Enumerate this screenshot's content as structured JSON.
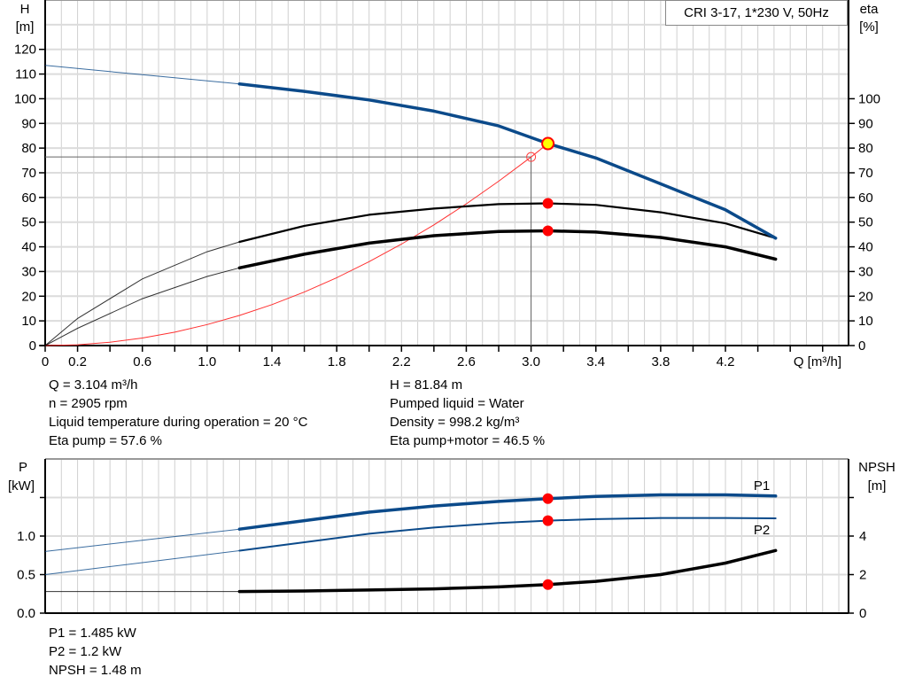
{
  "legend_box": "CRI 3-17, 1*230 V, 50Hz",
  "chart_data": [
    {
      "type": "line",
      "x_label": "Q [m³/h]",
      "y_label_left": [
        "H",
        "[m]"
      ],
      "y_label_right": [
        "eta",
        "[%]"
      ],
      "xlim": [
        0,
        4.96
      ],
      "ylim": [
        0,
        140
      ],
      "x_ticks": [
        0,
        0.2,
        0.4,
        0.6,
        0.8,
        1.0,
        1.2,
        1.4,
        1.6,
        1.8,
        2.0,
        2.2,
        2.4,
        2.6,
        2.8,
        3.0,
        3.2,
        3.4,
        3.6,
        3.8,
        4.0,
        4.2,
        4.4,
        4.6,
        4.8
      ],
      "x_tick_labels": [
        "0",
        "0.2",
        "",
        "0.6",
        "",
        "1.0",
        "",
        "1.4",
        "",
        "1.8",
        "",
        "2.2",
        "",
        "2.6",
        "",
        "3.0",
        "",
        "3.4",
        "",
        "3.8",
        "",
        "4.2",
        "",
        "",
        ""
      ],
      "y_ticks_left": [
        0,
        10,
        20,
        30,
        40,
        50,
        60,
        70,
        80,
        90,
        100,
        110,
        120
      ],
      "y_ticks_right": [
        0,
        10,
        20,
        30,
        40,
        50,
        60,
        70,
        80,
        90,
        100
      ],
      "grid": true,
      "series": [
        {
          "id": "H",
          "color": "#0b4a8a",
          "thick_from": 1.2,
          "x": [
            0,
            0.4,
            0.8,
            1.2,
            1.6,
            2.0,
            2.4,
            2.8,
            3.104,
            3.4,
            3.8,
            4.2,
            4.51
          ],
          "y": [
            113.5,
            111,
            108.5,
            106,
            103,
            99.5,
            95,
            89,
            81.84,
            76,
            65.5,
            55,
            43.5
          ]
        },
        {
          "id": "eta_pump",
          "color": "#000000",
          "thick_from": 1.2,
          "x": [
            0,
            0.2,
            0.6,
            1.0,
            1.2,
            1.6,
            2.0,
            2.4,
            2.8,
            3.104,
            3.4,
            3.8,
            4.2,
            4.51
          ],
          "y": [
            0,
            11,
            27,
            38,
            42,
            48.5,
            53,
            55.5,
            57.3,
            57.6,
            57,
            54,
            49.5,
            43.5
          ]
        },
        {
          "id": "eta_pump_motor",
          "color": "#000000",
          "thick_from": 1.2,
          "x": [
            0,
            0.2,
            0.6,
            1.0,
            1.2,
            1.6,
            2.0,
            2.4,
            2.8,
            3.104,
            3.4,
            3.8,
            4.2,
            4.51
          ],
          "y": [
            0,
            7,
            19,
            28,
            31.5,
            37,
            41.5,
            44.5,
            46.2,
            46.5,
            46,
            43.8,
            40,
            35
          ]
        },
        {
          "id": "system_curve",
          "color": "#ff3030",
          "x": [
            0,
            0.2,
            0.4,
            0.6,
            0.8,
            1.0,
            1.2,
            1.4,
            1.6,
            1.8,
            2.0,
            2.2,
            2.4,
            2.6,
            2.8,
            3.0,
            3.104
          ],
          "y": [
            0,
            0.34,
            1.36,
            3.06,
            5.43,
            8.49,
            12.2,
            16.6,
            21.7,
            27.5,
            34,
            41.1,
            48.9,
            57.4,
            66.6,
            76.4,
            81.84
          ]
        }
      ],
      "duty_point": {
        "Q": 3.104,
        "H": 81.84,
        "eta_pump": 57.6,
        "eta_pump_motor": 46.5
      },
      "reference_point": {
        "Q": 3.0,
        "H": 76.4
      }
    },
    {
      "type": "line",
      "y_label_left": [
        "P",
        "[kW]"
      ],
      "y_label_right": [
        "NPSH",
        "[m]"
      ],
      "xlim": [
        0,
        4.96
      ],
      "ylim": [
        0,
        2.0
      ],
      "ylim_right": [
        0,
        8
      ],
      "y_ticks_left": [
        0,
        0.5,
        1.0,
        1.5
      ],
      "y_tick_labels_left": [
        "0.0",
        "0.5",
        "1.0",
        ""
      ],
      "y_ticks_right": [
        0,
        2,
        4,
        6
      ],
      "y_tick_labels_right": [
        "0",
        "2",
        "4",
        ""
      ],
      "grid": true,
      "series": [
        {
          "id": "P1",
          "name": "P1",
          "color": "#0b4a8a",
          "thick_from": 1.2,
          "axis": "left",
          "x": [
            0,
            0.6,
            1.2,
            1.6,
            2.0,
            2.4,
            2.8,
            3.104,
            3.4,
            3.8,
            4.2,
            4.51
          ],
          "y": [
            0.8,
            0.945,
            1.09,
            1.2,
            1.31,
            1.39,
            1.45,
            1.485,
            1.515,
            1.535,
            1.535,
            1.52
          ]
        },
        {
          "id": "P2",
          "name": "P2",
          "color": "#0b4a8a",
          "thick_from": 1.2,
          "axis": "left",
          "medium": true,
          "x": [
            0,
            0.6,
            1.2,
            1.6,
            2.0,
            2.4,
            2.8,
            3.104,
            3.4,
            3.8,
            4.2,
            4.51
          ],
          "y": [
            0.5,
            0.655,
            0.81,
            0.92,
            1.03,
            1.11,
            1.17,
            1.2,
            1.22,
            1.235,
            1.235,
            1.23
          ]
        },
        {
          "id": "NPSH",
          "color": "#000000",
          "thick_from": 1.2,
          "axis": "right",
          "x": [
            0,
            1.2,
            1.6,
            2.0,
            2.4,
            2.8,
            3.104,
            3.4,
            3.8,
            4.2,
            4.51
          ],
          "y": [
            1.12,
            1.12,
            1.15,
            1.2,
            1.26,
            1.36,
            1.48,
            1.65,
            2.0,
            2.6,
            3.25
          ]
        }
      ],
      "duty_point": {
        "Q": 3.104,
        "P1": 1.485,
        "P2": 1.2,
        "NPSH": 1.48
      }
    }
  ],
  "info_top_left": [
    "Q = 3.104 m³/h",
    "n = 2905 rpm",
    "Liquid temperature during operation = 20 °C",
    "Eta pump = 57.6 %"
  ],
  "info_top_right": [
    "H = 81.84 m",
    "Pumped liquid = Water",
    "Density = 998.2 kg/m³",
    "Eta pump+motor = 46.5 %"
  ],
  "info_bottom": [
    "P1 = 1.485 kW",
    "P2 = 1.2 kW",
    "NPSH = 1.48 m"
  ]
}
